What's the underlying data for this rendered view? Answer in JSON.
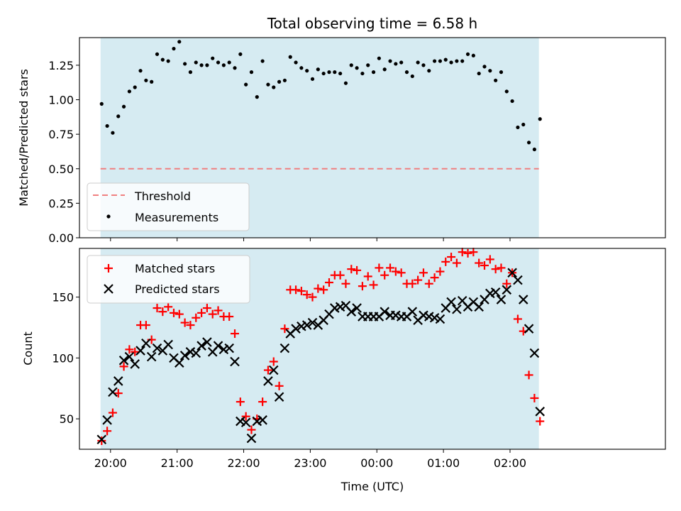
{
  "chart_data": [
    {
      "type": "scatter",
      "title": "Total observing time = 6.58 h",
      "ylabel": "Matched/Predicted stars",
      "ylim": [
        0,
        1.45
      ],
      "yticks": [
        0.0,
        0.25,
        0.5,
        0.75,
        1.0,
        1.25
      ],
      "ytick_labels": [
        "0.00",
        "0.25",
        "0.50",
        "0.75",
        "1.00",
        "1.25"
      ],
      "x_unit": "minutes after 20:00 UTC",
      "xlim": [
        -28,
        500
      ],
      "shaded_span": [
        -9,
        386
      ],
      "shade_color": "#add8e6",
      "threshold": {
        "name": "Threshold",
        "value": 0.5,
        "color": "#f08080",
        "style": "dashed"
      },
      "series": [
        {
          "name": "Measurements",
          "color": "#000000",
          "marker": "dot",
          "x": [
            -8,
            -3,
            2,
            7,
            12,
            17,
            22,
            27,
            32,
            37,
            42,
            47,
            52,
            57,
            62,
            67,
            72,
            77,
            82,
            87,
            92,
            97,
            102,
            107,
            112,
            117,
            122,
            127,
            132,
            137,
            142,
            147,
            152,
            157,
            162,
            167,
            172,
            177,
            182,
            187,
            192,
            197,
            202,
            207,
            212,
            217,
            222,
            227,
            232,
            237,
            242,
            247,
            252,
            257,
            262,
            267,
            272,
            277,
            282,
            287,
            292,
            297,
            302,
            307,
            312,
            317,
            322,
            327,
            332,
            337,
            342,
            347,
            352,
            357,
            362,
            367,
            372,
            377,
            382,
            387
          ],
          "values": [
            0.97,
            0.81,
            0.76,
            0.88,
            0.95,
            1.06,
            1.09,
            1.21,
            1.14,
            1.13,
            1.33,
            1.29,
            1.28,
            1.37,
            1.42,
            1.26,
            1.2,
            1.27,
            1.25,
            1.25,
            1.3,
            1.27,
            1.25,
            1.27,
            1.23,
            1.33,
            1.11,
            1.2,
            1.02,
            1.28,
            1.11,
            1.09,
            1.13,
            1.14,
            1.31,
            1.27,
            1.23,
            1.21,
            1.15,
            1.22,
            1.19,
            1.2,
            1.2,
            1.19,
            1.12,
            1.25,
            1.23,
            1.19,
            1.25,
            1.2,
            1.3,
            1.22,
            1.28,
            1.26,
            1.27,
            1.2,
            1.17,
            1.27,
            1.25,
            1.21,
            1.28,
            1.28,
            1.29,
            1.27,
            1.28,
            1.28,
            1.33,
            1.32,
            1.19,
            1.24,
            1.21,
            1.14,
            1.2,
            1.06,
            0.99,
            0.8,
            0.82,
            0.69,
            0.64,
            0.86
          ]
        }
      ],
      "legend": [
        "Threshold",
        "Measurements"
      ],
      "legend_position": "lower-left"
    },
    {
      "type": "scatter",
      "xlabel": "Time (UTC)",
      "ylabel": "Count",
      "ylim": [
        25,
        190
      ],
      "yticks": [
        50,
        100,
        150
      ],
      "ytick_labels": [
        "50",
        "100",
        "150"
      ],
      "x_unit": "minutes after 20:00 UTC",
      "xlim": [
        -28,
        500
      ],
      "xticks": [
        0,
        60,
        120,
        180,
        240,
        300,
        360
      ],
      "xtick_labels": [
        "20:00",
        "21:00",
        "22:00",
        "23:00",
        "00:00",
        "01:00",
        "02:00"
      ],
      "shaded_span": [
        -9,
        386
      ],
      "shade_color": "#add8e6",
      "series": [
        {
          "name": "Matched stars",
          "color": "#ff0000",
          "marker": "plus",
          "x": [
            -8,
            -3,
            2,
            7,
            12,
            17,
            22,
            27,
            32,
            37,
            42,
            47,
            52,
            57,
            62,
            67,
            72,
            77,
            82,
            87,
            92,
            97,
            102,
            107,
            112,
            117,
            122,
            127,
            132,
            137,
            142,
            147,
            152,
            157,
            162,
            167,
            172,
            177,
            182,
            187,
            192,
            197,
            202,
            207,
            212,
            217,
            222,
            227,
            232,
            237,
            242,
            247,
            252,
            257,
            262,
            267,
            272,
            277,
            282,
            287,
            292,
            297,
            302,
            307,
            312,
            317,
            322,
            327,
            332,
            337,
            342,
            347,
            352,
            357,
            362,
            367,
            372,
            377,
            382,
            387
          ],
          "values": [
            32,
            40,
            55,
            71,
            93,
            107,
            105,
            127,
            127,
            115,
            141,
            138,
            142,
            137,
            136,
            129,
            127,
            133,
            137,
            141,
            136,
            139,
            134,
            134,
            120,
            64,
            52,
            41,
            50,
            64,
            90,
            97,
            77,
            124,
            156,
            156,
            155,
            152,
            150,
            157,
            156,
            162,
            168,
            168,
            161,
            173,
            172,
            159,
            167,
            160,
            174,
            168,
            174,
            171,
            170,
            161,
            161,
            164,
            170,
            161,
            166,
            171,
            179,
            183,
            178,
            187,
            186,
            187,
            178,
            176,
            181,
            173,
            174,
            161,
            170,
            132,
            122,
            86,
            67,
            48
          ]
        },
        {
          "name": "Predicted stars",
          "color": "#000000",
          "marker": "x",
          "x": [
            -8,
            -3,
            2,
            7,
            12,
            17,
            22,
            27,
            32,
            37,
            42,
            47,
            52,
            57,
            62,
            67,
            72,
            77,
            82,
            87,
            92,
            97,
            102,
            107,
            112,
            117,
            122,
            127,
            132,
            137,
            142,
            147,
            152,
            157,
            162,
            167,
            172,
            177,
            182,
            187,
            192,
            197,
            202,
            207,
            212,
            217,
            222,
            227,
            232,
            237,
            242,
            247,
            252,
            257,
            262,
            267,
            272,
            277,
            282,
            287,
            292,
            297,
            302,
            307,
            312,
            317,
            322,
            327,
            332,
            337,
            342,
            347,
            352,
            357,
            362,
            367,
            372,
            377,
            382,
            387
          ],
          "values": [
            33,
            49,
            72,
            81,
            98,
            101,
            95,
            106,
            112,
            101,
            108,
            106,
            111,
            100,
            96,
            102,
            105,
            104,
            110,
            113,
            105,
            110,
            107,
            108,
            97,
            48,
            47,
            34,
            48,
            49,
            81,
            90,
            68,
            108,
            120,
            124,
            126,
            127,
            129,
            127,
            131,
            136,
            141,
            142,
            143,
            138,
            141,
            134,
            134,
            134,
            134,
            138,
            135,
            135,
            134,
            134,
            138,
            131,
            135,
            134,
            133,
            132,
            141,
            146,
            140,
            147,
            142,
            146,
            142,
            148,
            153,
            154,
            148,
            156,
            170,
            164,
            148,
            124,
            104,
            56
          ]
        }
      ],
      "legend": [
        "Matched stars",
        "Predicted stars"
      ],
      "legend_position": "upper-left"
    }
  ]
}
